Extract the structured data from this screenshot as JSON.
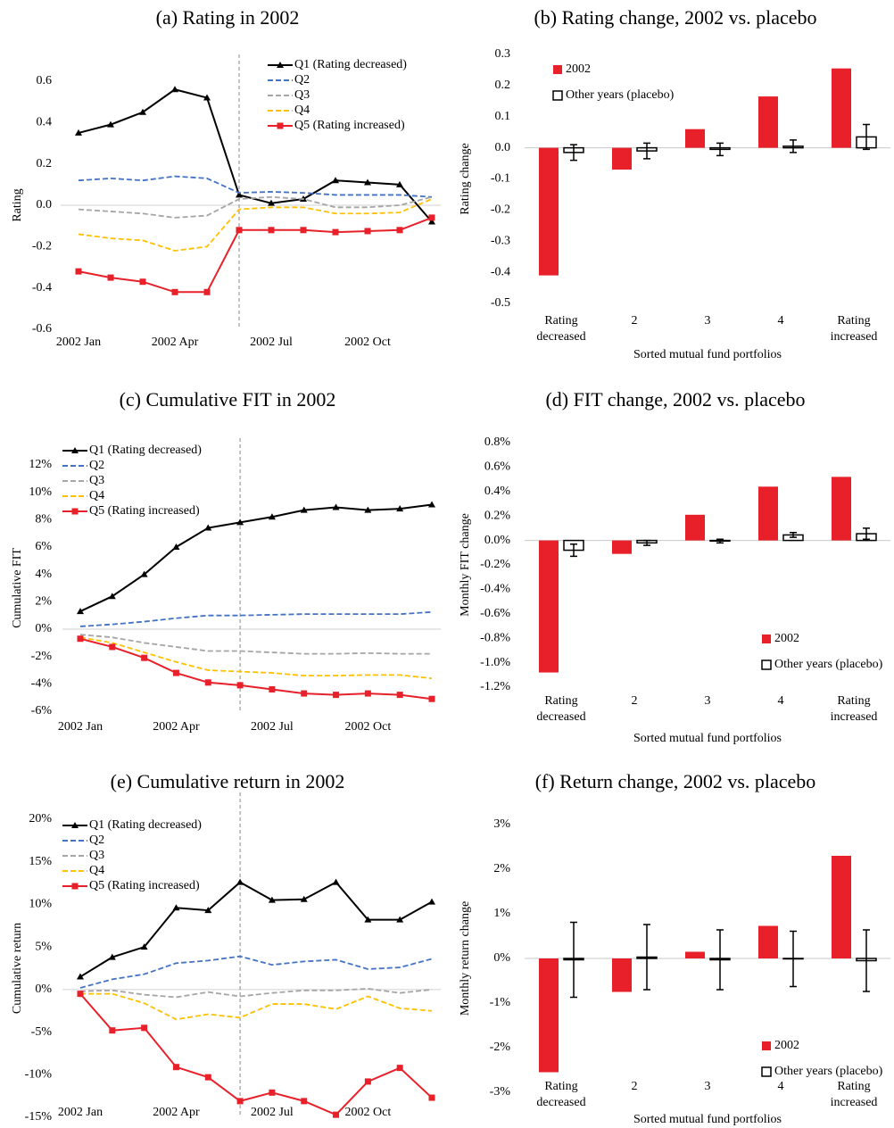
{
  "chart_data": [
    {
      "type": "line",
      "title": "(a) Rating in 2002",
      "ylabel": "Rating",
      "categories": [
        "2002 Jan",
        null,
        null,
        "2002 Apr",
        null,
        null,
        "2002 Jul",
        null,
        null,
        "2002 Oct",
        null,
        null
      ],
      "series": [
        {
          "name": "Q1 (Rating decreased)",
          "color": "#000000",
          "marker": "triangle",
          "style": "solid",
          "values": [
            0.35,
            0.39,
            0.45,
            0.56,
            0.52,
            0.05,
            0.01,
            0.03,
            0.12,
            0.11,
            0.1,
            -0.08
          ]
        },
        {
          "name": "Q2",
          "color": "#4472c4",
          "style": "dashed",
          "values": [
            0.12,
            0.13,
            0.12,
            0.14,
            0.13,
            0.06,
            0.065,
            0.06,
            0.05,
            0.05,
            0.05,
            0.04
          ]
        },
        {
          "name": "Q3",
          "color": "#a5a5a5",
          "style": "dashed",
          "values": [
            -0.02,
            -0.03,
            -0.04,
            -0.06,
            -0.05,
            0.03,
            0.04,
            0.03,
            -0.01,
            -0.01,
            0.0,
            0.04
          ]
        },
        {
          "name": "Q4",
          "color": "#ffc000",
          "style": "dashed",
          "values": [
            -0.14,
            -0.16,
            -0.17,
            -0.22,
            -0.2,
            -0.02,
            -0.01,
            -0.01,
            -0.04,
            -0.04,
            -0.035,
            0.03
          ]
        },
        {
          "name": "Q5 (Rating increased)",
          "color": "#e8202a",
          "marker": "square",
          "style": "solid",
          "values": [
            -0.32,
            -0.35,
            -0.37,
            -0.42,
            -0.42,
            -0.12,
            -0.12,
            -0.12,
            -0.13,
            -0.125,
            -0.12,
            -0.06
          ]
        }
      ],
      "ylim": [
        -0.6,
        0.6
      ],
      "yticks": [
        0.6,
        0.4,
        0.2,
        {
          "value": 0,
          "label": "0.0"
        },
        -0.2,
        -0.4,
        -0.6
      ],
      "vline": 5,
      "legend": "upper right"
    },
    {
      "type": "bar",
      "title": "(b) Rating change, 2002 vs. placebo",
      "xlabel": "Sorted mutual fund portfolios",
      "ylabel": "Rating change",
      "categories": [
        "Rating decreased",
        "2",
        "3",
        "4",
        "Rating increased"
      ],
      "series": [
        {
          "name": "2002",
          "color": "#e8202a",
          "values": [
            -0.41,
            -0.07,
            0.06,
            0.165,
            0.255
          ]
        },
        {
          "name": "Other years (placebo)",
          "color": "#ffffff",
          "edgecolor": "#000000",
          "values": [
            -0.015,
            -0.01,
            -0.005,
            0.005,
            0.035
          ],
          "errors": [
            0.025,
            0.025,
            0.02,
            0.02,
            0.04
          ]
        }
      ],
      "ylim": [
        -0.5,
        0.3
      ],
      "yticks": [
        0.3,
        0.2,
        0.1,
        {
          "value": 0,
          "label": "0.0"
        },
        -0.1,
        -0.2,
        -0.3,
        -0.4,
        -0.5
      ],
      "legend": "upper left"
    },
    {
      "type": "line",
      "title": "(c) Cumulative FIT in 2002",
      "ylabel": "Cumulative FIT",
      "categories": [
        "2002 Jan",
        null,
        null,
        "2002 Apr",
        null,
        null,
        "2002 Jul",
        null,
        null,
        "2002 Oct",
        null,
        null
      ],
      "series": [
        {
          "name": "Q1 (Rating decreased)",
          "color": "#000000",
          "marker": "triangle",
          "style": "solid",
          "values": [
            1.3,
            2.4,
            4.0,
            6.0,
            7.4,
            7.8,
            8.2,
            8.7,
            8.9,
            8.7,
            8.8,
            9.1
          ]
        },
        {
          "name": "Q2",
          "color": "#4472c4",
          "style": "dashed",
          "values": [
            0.2,
            0.35,
            0.55,
            0.8,
            1.0,
            1.0,
            1.05,
            1.1,
            1.1,
            1.1,
            1.1,
            1.25
          ]
        },
        {
          "name": "Q3",
          "color": "#a5a5a5",
          "style": "dashed",
          "values": [
            -0.4,
            -0.6,
            -1.0,
            -1.3,
            -1.6,
            -1.6,
            -1.7,
            -1.8,
            -1.8,
            -1.75,
            -1.8,
            -1.8
          ]
        },
        {
          "name": "Q4",
          "color": "#ffc000",
          "style": "dashed",
          "values": [
            -0.6,
            -1.0,
            -1.7,
            -2.4,
            -3.0,
            -3.1,
            -3.2,
            -3.4,
            -3.4,
            -3.35,
            -3.35,
            -3.6
          ]
        },
        {
          "name": "Q5 (Rating increased)",
          "color": "#e8202a",
          "marker": "square",
          "style": "solid",
          "values": [
            -0.7,
            -1.3,
            -2.1,
            -3.2,
            -3.9,
            -4.1,
            -4.4,
            -4.7,
            -4.8,
            -4.7,
            -4.8,
            -5.1
          ]
        }
      ],
      "ylim": [
        -6,
        12
      ],
      "yticks": [
        {
          "value": 12,
          "label": "12%"
        },
        {
          "value": 10,
          "label": "10%"
        },
        {
          "value": 8,
          "label": "8%"
        },
        {
          "value": 6,
          "label": "6%"
        },
        {
          "value": 4,
          "label": "4%"
        },
        {
          "value": 2,
          "label": "2%"
        },
        {
          "value": 0,
          "label": "0%"
        },
        {
          "value": -2,
          "label": "-2%"
        },
        {
          "value": -4,
          "label": "-4%"
        },
        {
          "value": -6,
          "label": "-6%"
        }
      ],
      "vline": 5,
      "legend": "upper left"
    },
    {
      "type": "bar",
      "title": "(d) FIT change, 2002 vs. placebo",
      "xlabel": "Sorted mutual fund portfolios",
      "ylabel": "Monthly FIT change",
      "categories": [
        "Rating decreased",
        "2",
        "3",
        "4",
        "Rating increased"
      ],
      "series": [
        {
          "name": "2002",
          "color": "#e8202a",
          "values": [
            -1.08,
            -0.11,
            0.21,
            0.44,
            0.52
          ]
        },
        {
          "name": "Other years (placebo)",
          "color": "#ffffff",
          "edgecolor": "#000000",
          "values": [
            -0.08,
            -0.02,
            -0.005,
            0.045,
            0.055
          ],
          "errors": [
            0.05,
            0.02,
            0.015,
            0.02,
            0.045
          ]
        }
      ],
      "ylim": [
        -1.2,
        0.8
      ],
      "yticks": [
        {
          "value": 0.8,
          "label": "0.8%"
        },
        {
          "value": 0.6,
          "label": "0.6%"
        },
        {
          "value": 0.4,
          "label": "0.4%"
        },
        {
          "value": 0.2,
          "label": "0.2%"
        },
        {
          "value": 0,
          "label": "0.0%"
        },
        {
          "value": -0.2,
          "label": "-0.2%"
        },
        {
          "value": -0.4,
          "label": "-0.4%"
        },
        {
          "value": -0.6,
          "label": "-0.6%"
        },
        {
          "value": -0.8,
          "label": "-0.8%"
        },
        {
          "value": -1.0,
          "label": "-1.0%"
        },
        {
          "value": -1.2,
          "label": "-1.2%"
        }
      ],
      "legend": "lower right"
    },
    {
      "type": "line",
      "title": "(e) Cumulative return in 2002",
      "ylabel": "Cumulative return",
      "categories": [
        "2002 Jan",
        null,
        null,
        "2002 Apr",
        null,
        null,
        "2002 Jul",
        null,
        null,
        "2002 Oct",
        null,
        null
      ],
      "series": [
        {
          "name": "Q1 (Rating decreased)",
          "color": "#000000",
          "marker": "triangle",
          "style": "solid",
          "values": [
            1.5,
            3.8,
            5.0,
            9.6,
            9.3,
            12.6,
            10.5,
            10.6,
            12.6,
            8.2,
            8.2,
            10.3
          ]
        },
        {
          "name": "Q2",
          "color": "#4472c4",
          "style": "dashed",
          "values": [
            0.2,
            1.2,
            1.8,
            3.1,
            3.4,
            3.9,
            2.9,
            3.3,
            3.5,
            2.4,
            2.6,
            3.6
          ]
        },
        {
          "name": "Q3",
          "color": "#a5a5a5",
          "style": "dashed",
          "values": [
            -0.2,
            -0.1,
            -0.6,
            -0.9,
            -0.3,
            -0.8,
            -0.4,
            -0.1,
            -0.1,
            0.1,
            -0.4,
            0.0
          ]
        },
        {
          "name": "Q4",
          "color": "#ffc000",
          "style": "dashed",
          "values": [
            -0.5,
            -0.5,
            -1.6,
            -3.5,
            -2.9,
            -3.3,
            -1.7,
            -1.7,
            -2.3,
            -0.8,
            -2.2,
            -2.5
          ]
        },
        {
          "name": "Q5 (Rating increased)",
          "color": "#e8202a",
          "marker": "square",
          "style": "solid",
          "values": [
            -0.5,
            -4.8,
            -4.5,
            -9.1,
            -10.3,
            -13.1,
            -12.1,
            -13.1,
            -14.7,
            -10.8,
            -9.2,
            -12.7
          ]
        }
      ],
      "ylim": [
        -15,
        20
      ],
      "yticks": [
        {
          "value": 20,
          "label": "20%"
        },
        {
          "value": 15,
          "label": "15%"
        },
        {
          "value": 10,
          "label": "10%"
        },
        {
          "value": 5,
          "label": "5%"
        },
        {
          "value": 0,
          "label": "0%"
        },
        {
          "value": -5,
          "label": "-5%"
        },
        {
          "value": -10,
          "label": "-10%"
        },
        {
          "value": -15,
          "label": "-15%"
        }
      ],
      "vline": 5,
      "legend": "upper left"
    },
    {
      "type": "bar",
      "title": "(f) Return change, 2002 vs. placebo",
      "xlabel": "Sorted mutual fund portfolios",
      "ylabel": "Monthly return change",
      "categories": [
        "Rating decreased",
        "2",
        "3",
        "4",
        "Rating increased"
      ],
      "series": [
        {
          "name": "2002",
          "color": "#e8202a",
          "values": [
            -2.55,
            -0.75,
            0.15,
            0.73,
            2.3
          ]
        },
        {
          "name": "Other years (placebo)",
          "color": "#ffffff",
          "edgecolor": "#000000",
          "values": [
            -0.03,
            0.03,
            -0.03,
            -0.01,
            -0.05
          ],
          "errors": [
            0.84,
            0.73,
            0.67,
            0.62,
            0.69
          ]
        }
      ],
      "ylim": [
        -3,
        3
      ],
      "yticks": [
        {
          "value": 3,
          "label": "3%"
        },
        {
          "value": 2,
          "label": "2%"
        },
        {
          "value": 1,
          "label": "1%"
        },
        {
          "value": 0,
          "label": "0%"
        },
        {
          "value": -1,
          "label": "-1%"
        },
        {
          "value": -2,
          "label": "-2%"
        },
        {
          "value": -3,
          "label": "-3%"
        }
      ],
      "legend": "lower right"
    }
  ]
}
